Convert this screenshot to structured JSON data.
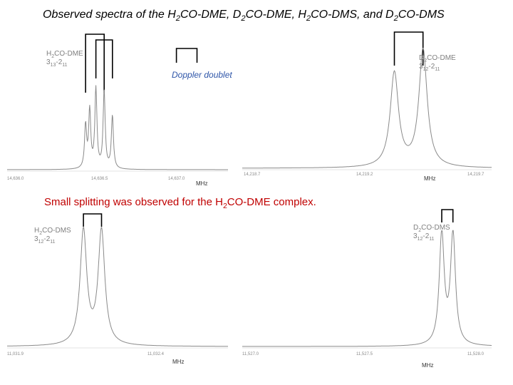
{
  "title": {
    "pre": "Observed spectra of the H",
    "s1": "2",
    "t1": "CO-DME, D",
    "s2": "2",
    "t2": "CO-DME, H",
    "s3": "2",
    "t3": "CO-DMS, and D",
    "s4": "2",
    "t4": "CO-DMS"
  },
  "note": {
    "pre": "Small splitting was observed for the H",
    "sub": "2",
    "post": "CO-DME complex."
  },
  "doppler_label": "Doppler doublet",
  "colors": {
    "spectrum": "#8a8a8a",
    "bracket": "#000000",
    "note": "#c00000",
    "doppler": "#2e55a8"
  },
  "chart_data": [
    {
      "type": "line",
      "species": {
        "pre": "H",
        "sub": "2",
        "post": "CO-DME"
      },
      "transition": {
        "j": "3",
        "ka": "13",
        "mid": "-2",
        "kb": "11"
      },
      "xlabel": "MHz",
      "xticks": [
        "14,636.0",
        "14,636.5",
        "14,637.0"
      ],
      "xlim": [
        14635.98,
        14637.05
      ],
      "peaks": [
        14636.36,
        14636.38,
        14636.41,
        14636.45,
        14636.49
      ],
      "peak_heights": [
        0.46,
        0.62,
        0.86,
        0.84,
        0.57
      ],
      "brackets": [
        {
          "x1": 14636.36,
          "x2": 14636.45
        },
        {
          "x1": 14636.41,
          "x2": 14636.49
        },
        {
          "x1": 14636.8,
          "x2": 14636.9
        }
      ]
    },
    {
      "type": "line",
      "species": {
        "pre": "D",
        "sub": "2",
        "post": "CO-DME"
      },
      "transition": {
        "j": "3",
        "ka": "12",
        "mid": "-2",
        "kb": "11"
      },
      "xlabel": "MHz",
      "xticks": [
        "14,218.7",
        "14,219.2",
        "14,219.7"
      ],
      "xlim": [
        14218.7,
        14219.7
      ],
      "peaks": [
        14219.31,
        14219.425
      ],
      "peak_heights": [
        0.8,
        1.0
      ],
      "brackets": [
        {
          "x1": 14219.31,
          "x2": 14219.425
        }
      ]
    },
    {
      "type": "line",
      "species": {
        "pre": "H",
        "sub": "2",
        "post": "CO-DMS"
      },
      "transition": {
        "j": "3",
        "ka": "12",
        "mid": "-2",
        "kb": "11"
      },
      "xlabel": "MHz",
      "xticks": [
        "11,031.9",
        "11,032.4"
      ],
      "xlim": [
        11031.9,
        11032.45
      ],
      "peaks": [
        11032.09,
        11032.135
      ],
      "peak_heights": [
        1.0,
        1.0
      ],
      "brackets": [
        {
          "x1": 11032.09,
          "x2": 11032.135
        }
      ]
    },
    {
      "type": "line",
      "species": {
        "pre": "D",
        "sub": "2",
        "post": "CO-DMS"
      },
      "transition": {
        "j": "3",
        "ka": "12",
        "mid": "-2",
        "kb": "11"
      },
      "xlabel": "MHz",
      "xticks": [
        "11,527.0",
        "11,527.5",
        "11,528.0"
      ],
      "xlim": [
        11527.0,
        11528.0
      ],
      "peaks": [
        11527.8,
        11527.845
      ],
      "peak_heights": [
        1.0,
        1.0
      ],
      "brackets": [
        {
          "x1": 11527.8,
          "x2": 11527.845
        }
      ]
    }
  ]
}
